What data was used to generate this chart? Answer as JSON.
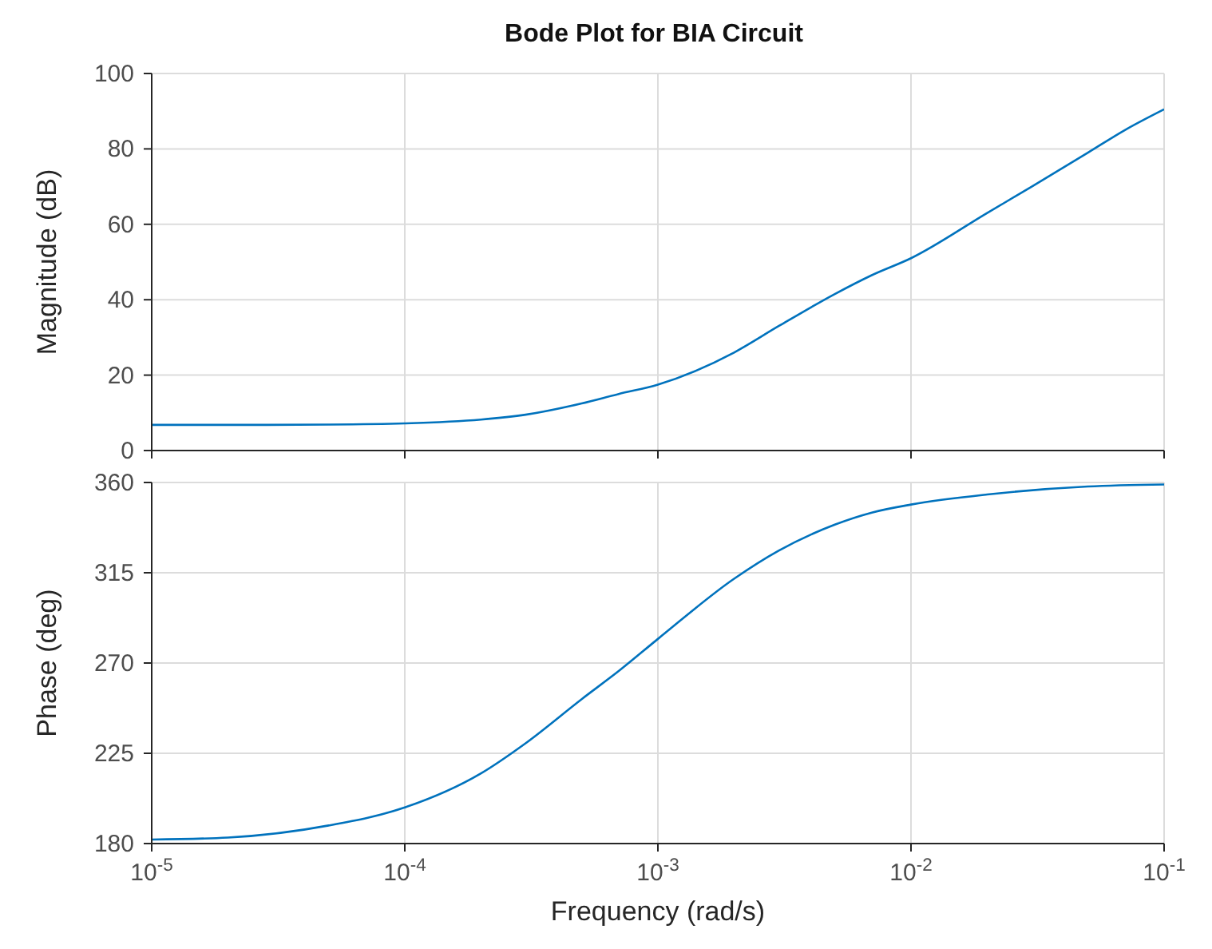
{
  "chart_data": [
    {
      "type": "line",
      "title": "Bode Plot for BIA Circuit",
      "ylabel": "Magnitude (dB)",
      "log": "x",
      "grid": true,
      "tick_labels": "y",
      "x": [
        1e-05,
        2e-05,
        5e-05,
        0.0001,
        0.0002,
        0.0003,
        0.0005,
        0.0007,
        0.001,
        0.002,
        0.003,
        0.005,
        0.007,
        0.01,
        0.02,
        0.03,
        0.05,
        0.07,
        0.1
      ],
      "series": [
        {
          "color": "#0072bd",
          "values": [
            6.8,
            6.8,
            6.9,
            7.2,
            8.2,
            9.5,
            12.5,
            15,
            17.5,
            26,
            33,
            41.5,
            46.5,
            51,
            63,
            70,
            79,
            85,
            90.5
          ]
        }
      ],
      "xlim": [
        1e-05,
        0.1
      ],
      "ylim": [
        0,
        100
      ],
      "yticks": [
        0,
        20,
        40,
        60,
        80,
        100
      ]
    },
    {
      "type": "line",
      "xlabel": "Frequency  (rad/s)",
      "ylabel": "Phase (deg)",
      "log": "x",
      "grid": true,
      "x": [
        1e-05,
        2e-05,
        5e-05,
        0.0001,
        0.0002,
        0.0003,
        0.0005,
        0.0007,
        0.001,
        0.002,
        0.003,
        0.005,
        0.007,
        0.01,
        0.02,
        0.05,
        0.1
      ],
      "series": [
        {
          "color": "#0072bd",
          "values": [
            182,
            183,
            189,
            198,
            215,
            230,
            252,
            266,
            282,
            312,
            326,
            339,
            345,
            349,
            354,
            358,
            359
          ]
        }
      ],
      "xlim": [
        1e-05,
        0.1
      ],
      "xticks": [
        {
          "value": 1e-05,
          "label": "10$^{-5}$"
        },
        {
          "value": 0.0001,
          "label": "10$^{-4}$"
        },
        {
          "value": 0.001,
          "label": "10$^{-3}$"
        },
        {
          "value": 0.01,
          "label": "10$^{-2}$"
        },
        {
          "value": 0.1,
          "label": "10$^{-1}$"
        }
      ],
      "ylim": [
        180,
        360
      ],
      "yticks": [
        180,
        225,
        270,
        315,
        360
      ]
    }
  ]
}
